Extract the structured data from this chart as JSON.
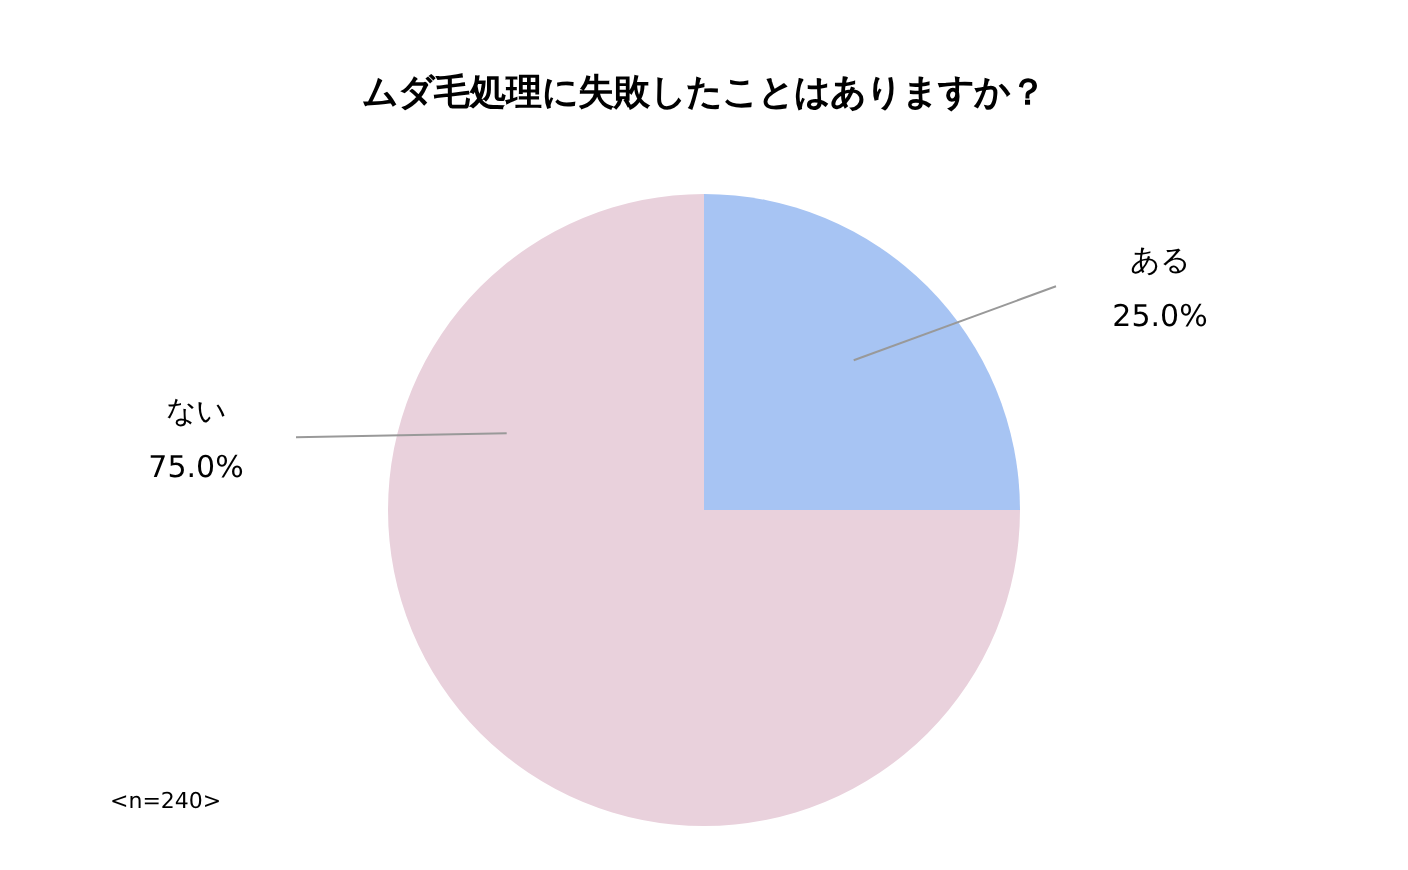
{
  "chart_data": {
    "type": "pie",
    "title": "ムダ毛処理に失敗したことはありますか？",
    "categories": [
      "ある",
      "ない"
    ],
    "values": [
      25,
      75
    ],
    "colors": [
      "#a7c4f3",
      "#e9d1dc"
    ],
    "value_labels": [
      "25.0%",
      "75.0%"
    ],
    "annotations": [
      "<n=240>"
    ]
  }
}
